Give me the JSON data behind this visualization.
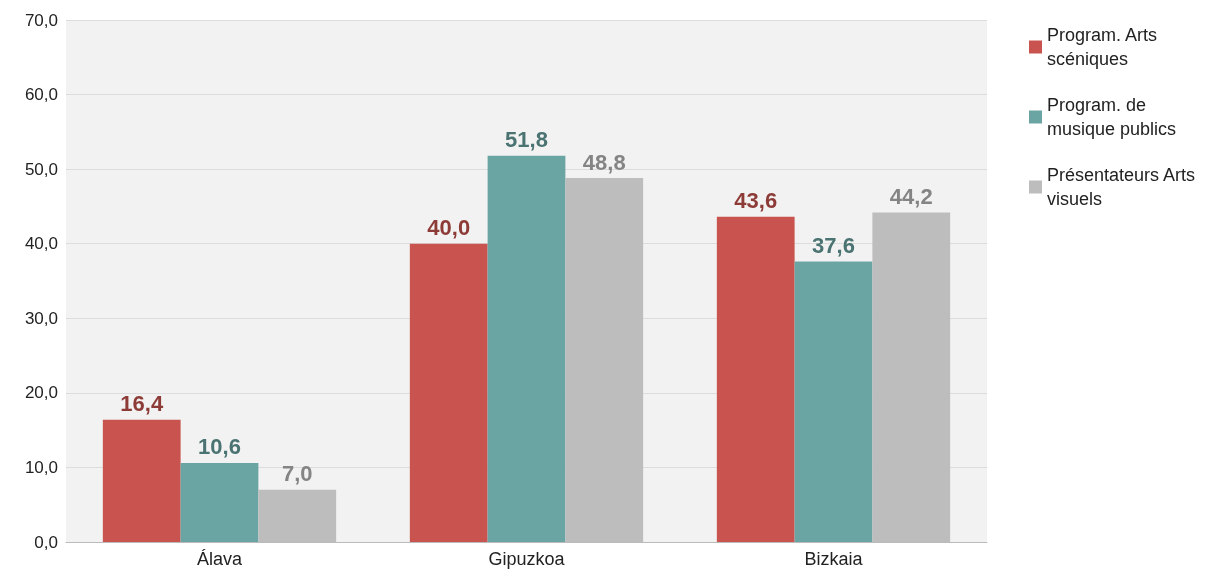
{
  "chart_data": {
    "type": "bar",
    "categories": [
      "Álava",
      "Gipuzkoa",
      "Bizkaia"
    ],
    "series": [
      {
        "name": "Program. Arts scéniques",
        "color": "#c9544f",
        "values": [
          16.4,
          40.0,
          43.6
        ],
        "value_labels": [
          "16,4",
          "40,0",
          "43,6"
        ]
      },
      {
        "name": "Program. de musique publics",
        "color": "#6aa5a3",
        "values": [
          10.6,
          51.8,
          37.6
        ],
        "value_labels": [
          "10,6",
          "51,8",
          "37,6"
        ]
      },
      {
        "name": "Présentateurs Arts visuels",
        "color": "#bdbdbd",
        "values": [
          7.0,
          48.8,
          44.2
        ],
        "value_labels": [
          "7,0",
          "48,8",
          "44,2"
        ]
      }
    ],
    "ylim": [
      0,
      70
    ],
    "yticks": [
      {
        "value": 0,
        "label": "0,0"
      },
      {
        "value": 10,
        "label": "10,0"
      },
      {
        "value": 20,
        "label": "20,0"
      },
      {
        "value": 30,
        "label": "30,0"
      },
      {
        "value": 40,
        "label": "40,0"
      },
      {
        "value": 50,
        "label": "50,0"
      },
      {
        "value": 60,
        "label": "60,0"
      },
      {
        "value": 70,
        "label": "70,0"
      }
    ],
    "grid": "y",
    "legend": "top right"
  }
}
